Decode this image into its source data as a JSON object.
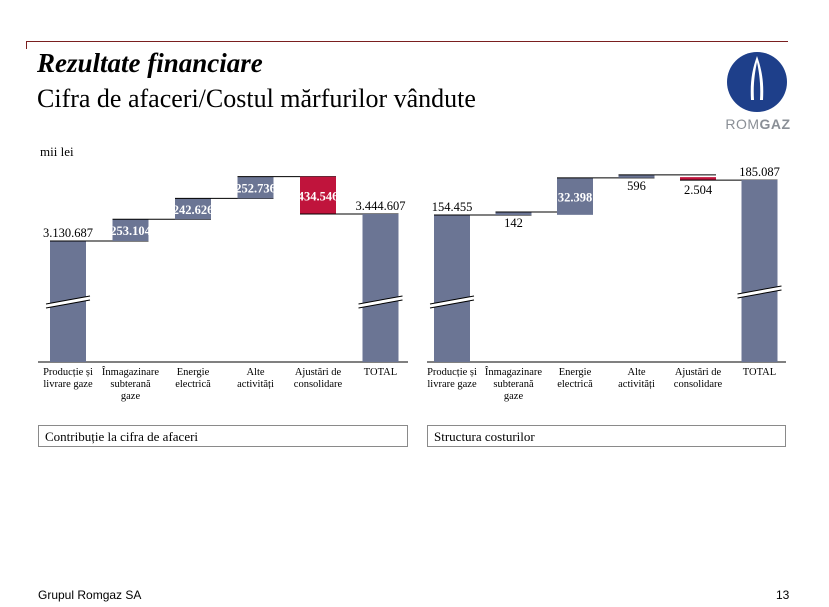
{
  "header": {
    "title": "Rezultate financiare",
    "subtitle": "Cifra de afaceri/Costul mărfurilor vândute",
    "logo_text_a": "ROM",
    "logo_text_b": "GAZ"
  },
  "unit_label": "mii lei",
  "footer": {
    "company": "Grupul Romgaz SA",
    "page": "13"
  },
  "colors": {
    "bar": "#6b7594",
    "negative": "#c0143c",
    "accent_line": "#7a1f1f"
  },
  "chart_data": [
    {
      "type": "bar",
      "subtype": "waterfall",
      "caption": "Contribuție la cifra de afaceri",
      "categories": [
        "Producție și livrare gaze",
        "Înmagazinare subterană gaze",
        "Energie electrică",
        "Alte activități",
        "Ajustări de consolidare",
        "TOTAL"
      ],
      "category_lines": [
        [
          "Producție și",
          "livrare gaze"
        ],
        [
          "Înmagazinare",
          "subterană",
          "gaze"
        ],
        [
          "Energie",
          "electrică"
        ],
        [
          "Alte",
          "activități"
        ],
        [
          "Ajustări de",
          "consolidare"
        ],
        [
          "TOTAL"
        ]
      ],
      "values": [
        3130687,
        253104,
        242626,
        252736,
        -434546,
        3444607
      ],
      "labels": [
        "3.130.687",
        "253.104",
        "242.626",
        "252.736",
        "434.546",
        "3.444.607"
      ],
      "kinds": [
        "total",
        "delta",
        "delta",
        "delta",
        "delta",
        "total"
      ],
      "axis_break": true
    },
    {
      "type": "bar",
      "subtype": "waterfall",
      "caption": "Structura costurilor",
      "categories": [
        "Producție și livrare gaze",
        "Înmagazinare subterană gaze",
        "Energie electrică",
        "Alte activități",
        "Ajustări de consolidare",
        "TOTAL"
      ],
      "category_lines": [
        [
          "Producție și",
          "livrare gaze"
        ],
        [
          "Înmagazinare",
          "subterană",
          "gaze"
        ],
        [
          "Energie",
          "electrică"
        ],
        [
          "Alte",
          "activități"
        ],
        [
          "Ajustări de",
          "consolidare"
        ],
        [
          "TOTAL"
        ]
      ],
      "values": [
        154455,
        142,
        32398,
        596,
        -2504,
        185087
      ],
      "labels": [
        "154.455",
        "142",
        "32.398",
        "596",
        "2.504",
        "185.087"
      ],
      "kinds": [
        "total",
        "delta",
        "delta",
        "delta",
        "delta",
        "total"
      ],
      "axis_break": true
    }
  ]
}
